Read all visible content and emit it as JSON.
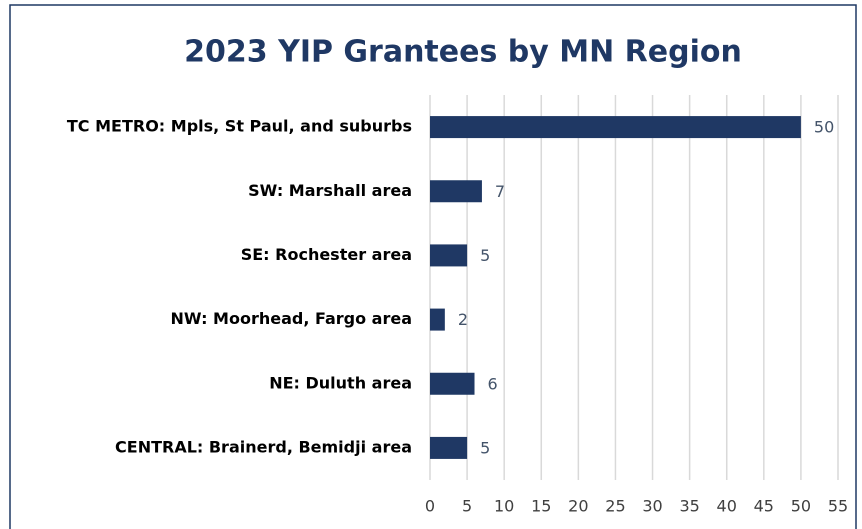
{
  "chart_data": {
    "type": "bar",
    "orientation": "horizontal",
    "title": "2023 YIP Grantees by MN Region",
    "categories": [
      "TC METRO: Mpls, St Paul, and suburbs",
      "SW: Marshall area",
      "SE: Rochester area",
      "NW: Moorhead, Fargo area",
      "NE: Duluth area",
      "CENTRAL: Brainerd, Bemidji area"
    ],
    "values": [
      50,
      7,
      5,
      2,
      6,
      5
    ],
    "color": "#1f3864",
    "xlim": [
      0,
      55
    ],
    "xticks": [
      0,
      5,
      10,
      15,
      20,
      25,
      30,
      35,
      40,
      45,
      50,
      55
    ],
    "grid": true
  }
}
